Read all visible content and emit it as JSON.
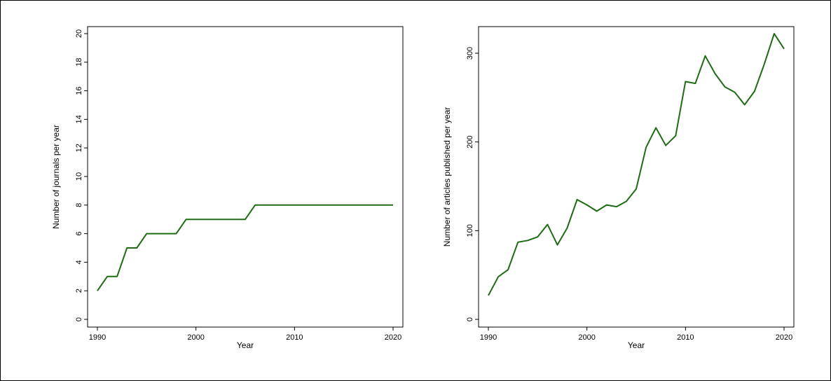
{
  "chart_data": [
    {
      "type": "line",
      "title": "",
      "xlabel": "Year",
      "ylabel": "Number of journals per year",
      "xlim": [
        1990,
        2020
      ],
      "ylim": [
        0,
        20
      ],
      "xticks": [
        1990,
        2000,
        2010,
        2020
      ],
      "yticks": [
        0,
        2,
        4,
        6,
        8,
        10,
        12,
        14,
        16,
        18,
        20
      ],
      "line_color": "#1e6b14",
      "grid": false,
      "series": [
        {
          "x": [
            1990,
            1991,
            1992,
            1993,
            1994,
            1995,
            1996,
            1997,
            1998,
            1999,
            2000,
            2001,
            2002,
            2003,
            2004,
            2005,
            2006,
            2007,
            2008,
            2009,
            2010,
            2011,
            2012,
            2013,
            2014,
            2015,
            2016,
            2017,
            2018,
            2019,
            2020
          ],
          "values": [
            2,
            3,
            3,
            5,
            5,
            6,
            6,
            6,
            6,
            7,
            7,
            7,
            7,
            7,
            7,
            7,
            8,
            8,
            8,
            8,
            8,
            8,
            8,
            8,
            8,
            8,
            8,
            8,
            8,
            8,
            8
          ]
        }
      ]
    },
    {
      "type": "line",
      "title": "",
      "xlabel": "Year",
      "ylabel": "Number of articles published per year",
      "xlim": [
        1990,
        2020
      ],
      "ylim": [
        0,
        330
      ],
      "xticks": [
        1990,
        2000,
        2010,
        2020
      ],
      "yticks": [
        0,
        100,
        200,
        300
      ],
      "line_color": "#1e6b14",
      "grid": false,
      "series": [
        {
          "x": [
            1990,
            1991,
            1992,
            1993,
            1994,
            1995,
            1996,
            1997,
            1998,
            1999,
            2000,
            2001,
            2002,
            2003,
            2004,
            2005,
            2006,
            2007,
            2008,
            2009,
            2010,
            2011,
            2012,
            2013,
            2014,
            2015,
            2016,
            2017,
            2018,
            2019,
            2020
          ],
          "values": [
            27,
            48,
            56,
            87,
            89,
            93,
            107,
            84,
            103,
            135,
            129,
            122,
            129,
            127,
            133,
            147,
            194,
            216,
            196,
            207,
            268,
            266,
            297,
            277,
            262,
            256,
            242,
            257,
            288,
            322,
            305
          ]
        }
      ]
    }
  ]
}
